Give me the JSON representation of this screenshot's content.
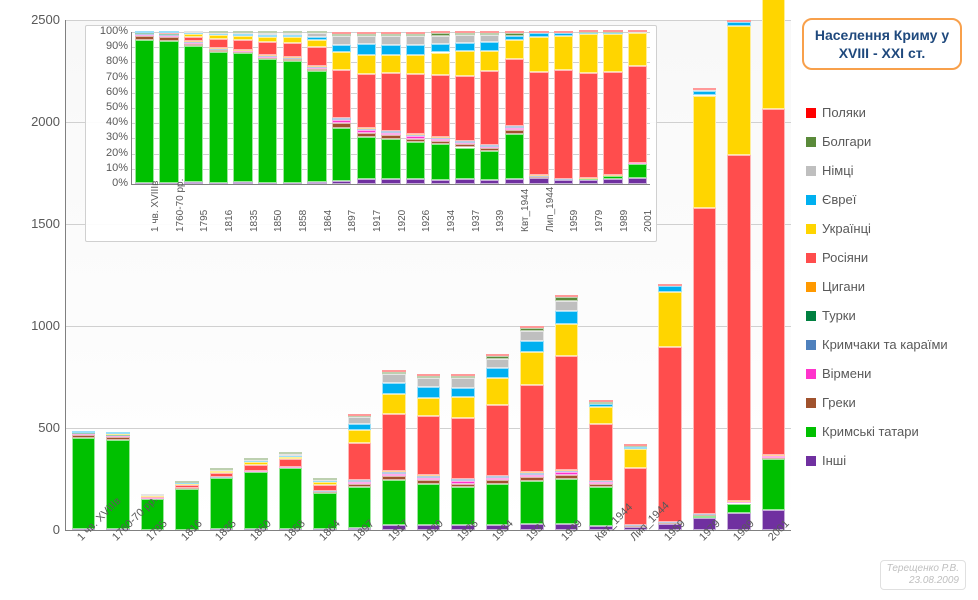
{
  "title": "Населення Криму у XVIII - XXI ст.",
  "author": "Терещенко Р.В.",
  "date": "23.08.2009",
  "legend_order": [
    "poles",
    "bulgarians",
    "germans",
    "jews",
    "ukrainians",
    "russians",
    "roma",
    "turks",
    "krymchaks_karaites",
    "armenians",
    "greeks",
    "crimean_tatars",
    "others"
  ],
  "series": {
    "poles": {
      "label": "Поляки",
      "color": "#ff0000"
    },
    "bulgarians": {
      "label": "Болгари",
      "color": "#5a8a3a"
    },
    "germans": {
      "label": "Німці",
      "color": "#bfbfbf"
    },
    "jews": {
      "label": "Євреї",
      "color": "#00b0f0"
    },
    "ukrainians": {
      "label": "Українці",
      "color": "#ffd500"
    },
    "russians": {
      "label": "Росіяни",
      "color": "#ff4d4d"
    },
    "roma": {
      "label": "Цигани",
      "color": "#ff9900"
    },
    "turks": {
      "label": "Турки",
      "color": "#008040"
    },
    "krymchaks_karaites": {
      "label": "Кримчаки та караїми",
      "color": "#4f81bd"
    },
    "armenians": {
      "label": "Вірмени",
      "color": "#ff33cc"
    },
    "greeks": {
      "label": "Греки",
      "color": "#a0522d"
    },
    "crimean_tatars": {
      "label": "Кримські татари",
      "color": "#00c000"
    },
    "others": {
      "label": "Інші",
      "color": "#7030a0"
    }
  },
  "stack_order": [
    "others",
    "crimean_tatars",
    "greeks",
    "armenians",
    "krymchaks_karaites",
    "turks",
    "roma",
    "russians",
    "ukrainians",
    "jews",
    "germans",
    "bulgarians",
    "poles"
  ],
  "main_chart": {
    "type": "stacked_bar",
    "ylim": [
      0,
      2500
    ],
    "ytick_step": 500,
    "y_fontsize": 13,
    "x_fontsize": 11,
    "x_label_rotation": -45,
    "plot_bg_top": "#f8f8f8",
    "plot_bg_bottom": "#ffffff",
    "grid_color": "#d0d0d0",
    "axis_color": "#808080",
    "bar_width_ratio": 0.68,
    "categories": [
      "1 чв. XVIIIв",
      "1760-70 рр.",
      "1795",
      "1816",
      "1835",
      "1850",
      "1858",
      "1864",
      "1897",
      "1917",
      "1920",
      "1926",
      "1934",
      "1937",
      "1939",
      "Квт_1944",
      "Лип_1944",
      "1959",
      "1979",
      "1989",
      "2001"
    ],
    "data": {
      "others": [
        3,
        3,
        2,
        2,
        3,
        3,
        3,
        3,
        10,
        25,
        25,
        25,
        25,
        30,
        30,
        20,
        15,
        30,
        60,
        85,
        100
      ],
      "crimean_tatars": [
        450,
        440,
        150,
        200,
        250,
        280,
        300,
        180,
        200,
        220,
        200,
        185,
        200,
        210,
        220,
        190,
        0,
        0,
        10,
        45,
        250
      ],
      "greeks": [
        12,
        12,
        2,
        2,
        2,
        3,
        3,
        3,
        18,
        20,
        20,
        18,
        18,
        20,
        20,
        15,
        3,
        2,
        3,
        3,
        3
      ],
      "armenians": [
        5,
        4,
        1,
        1,
        2,
        2,
        2,
        2,
        9,
        12,
        12,
        12,
        12,
        12,
        13,
        10,
        2,
        3,
        3,
        3,
        10
      ],
      "krymchaks_karaites": [
        2,
        2,
        1,
        1,
        1,
        2,
        2,
        2,
        8,
        9,
        9,
        8,
        8,
        8,
        8,
        5,
        3,
        2,
        2,
        2,
        1
      ],
      "turks": [
        3,
        3,
        0,
        0,
        0,
        0,
        0,
        0,
        0,
        0,
        0,
        0,
        0,
        0,
        0,
        0,
        0,
        0,
        0,
        0,
        0
      ],
      "roma": [
        2,
        2,
        1,
        1,
        1,
        1,
        1,
        1,
        2,
        2,
        2,
        2,
        2,
        2,
        2,
        2,
        1,
        1,
        2,
        2,
        2
      ],
      "russians": [
        0,
        2,
        5,
        15,
        20,
        30,
        35,
        30,
        180,
        280,
        290,
        300,
        350,
        430,
        560,
        280,
        280,
        860,
        1500,
        1700,
        1700
      ],
      "ukrainians": [
        0,
        1,
        3,
        5,
        8,
        12,
        14,
        12,
        65,
        100,
        90,
        100,
        130,
        160,
        155,
        80,
        95,
        270,
        550,
        630,
        580
      ],
      "jews": [
        2,
        2,
        1,
        2,
        3,
        4,
        5,
        5,
        28,
        55,
        55,
        48,
        50,
        55,
        65,
        15,
        10,
        26,
        24,
        18,
        5
      ],
      "germans": [
        0,
        0,
        1,
        2,
        3,
        5,
        6,
        6,
        32,
        42,
        42,
        45,
        45,
        50,
        52,
        0,
        0,
        0,
        2,
        2,
        3
      ],
      "bulgarians": [
        0,
        0,
        0,
        1,
        1,
        2,
        2,
        2,
        8,
        12,
        12,
        12,
        13,
        14,
        15,
        12,
        1,
        2,
        2,
        2,
        2
      ],
      "poles": [
        0,
        0,
        0,
        0,
        0,
        0,
        0,
        0,
        7,
        9,
        9,
        8,
        8,
        8,
        8,
        5,
        3,
        5,
        6,
        6,
        4
      ]
    }
  },
  "inset_chart": {
    "type": "stacked_bar_100pct",
    "ylim": [
      0,
      100
    ],
    "ytick_step": 10,
    "y_suffix": "%",
    "y_fontsize": 11,
    "x_fontsize": 10,
    "x_label_rotation": -90,
    "grid_color": "#d0d0d0",
    "bg_color": "rgba(255,255,255,0.92)",
    "bar_width_ratio": 0.78
  },
  "title_box": {
    "border_color": "#f8a04b",
    "text_color": "#1f497d",
    "border_radius": 10,
    "fontsize": 14
  },
  "author_box": {
    "text_color": "#bfbfbf",
    "border_color": "#e0e0e0"
  }
}
